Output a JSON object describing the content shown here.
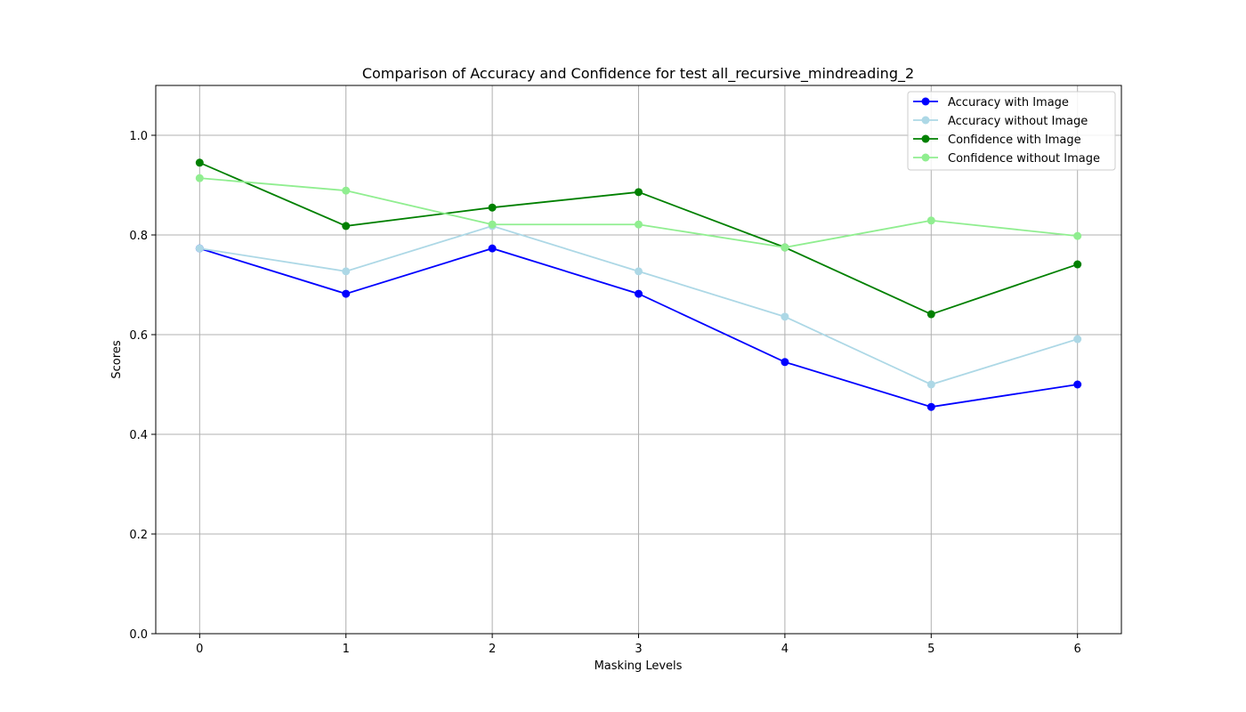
{
  "chart_data": {
    "type": "line",
    "title": "Comparison of Accuracy and Confidence for test all_recursive_mindreading_2",
    "xlabel": "Masking Levels",
    "ylabel": "Scores",
    "x": [
      0,
      1,
      2,
      3,
      4,
      5,
      6
    ],
    "xlim": [
      -0.3,
      6.3
    ],
    "ylim": [
      0,
      1.1
    ],
    "yticks": [
      0.0,
      0.2,
      0.4,
      0.6,
      0.8,
      1.0
    ],
    "ytick_labels": [
      "0.0",
      "0.2",
      "0.4",
      "0.6",
      "0.8",
      "1.0"
    ],
    "xtick_labels": [
      "0",
      "1",
      "2",
      "3",
      "4",
      "5",
      "6"
    ],
    "grid": true,
    "legend_position": "top-right",
    "series": [
      {
        "name": "Accuracy with Image",
        "color": "#0000ff",
        "values": [
          0.773,
          0.682,
          0.773,
          0.682,
          0.545,
          0.455,
          0.5
        ]
      },
      {
        "name": "Accuracy without Image",
        "color": "#add8e6",
        "values": [
          0.773,
          0.727,
          0.818,
          0.727,
          0.636,
          0.5,
          0.591
        ]
      },
      {
        "name": "Confidence with Image",
        "color": "#008000",
        "values": [
          0.945,
          0.818,
          0.855,
          0.886,
          0.775,
          0.641,
          0.741
        ]
      },
      {
        "name": "Confidence without Image",
        "color": "#90ee90",
        "values": [
          0.914,
          0.889,
          0.821,
          0.821,
          0.775,
          0.829,
          0.798
        ]
      }
    ]
  }
}
